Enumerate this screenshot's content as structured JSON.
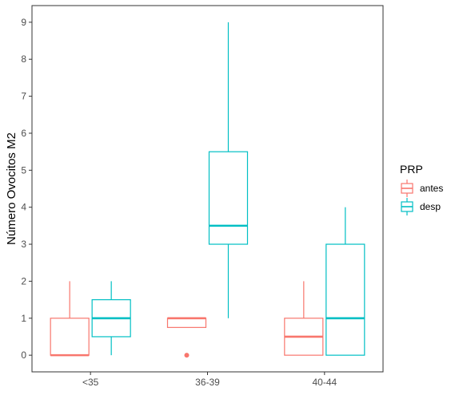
{
  "chart_data": {
    "type": "boxplot",
    "ylabel": "Número Ovocitos M2",
    "xlabel": "",
    "categories": [
      "<35",
      "36-39",
      "40-44"
    ],
    "ylim": [
      -0.45,
      9.45
    ],
    "yticks": [
      0,
      1,
      2,
      3,
      4,
      5,
      6,
      7,
      8,
      9
    ],
    "grid": false,
    "legend": {
      "title": "PRP",
      "placement": "right",
      "entries": [
        "antes",
        "desp"
      ]
    },
    "series": [
      {
        "name": "antes",
        "color": "#F8766D",
        "boxes": [
          {
            "category": "<35",
            "whisker_low": 0,
            "q1": 0,
            "median": 0,
            "q3": 1,
            "whisker_high": 2,
            "outliers": []
          },
          {
            "category": "36-39",
            "whisker_low": 0.75,
            "q1": 0.75,
            "median": 1,
            "q3": 1,
            "whisker_high": 1,
            "outliers": [
              0
            ]
          },
          {
            "category": "40-44",
            "whisker_low": 0,
            "q1": 0,
            "median": 0.5,
            "q3": 1,
            "whisker_high": 2,
            "outliers": []
          }
        ]
      },
      {
        "name": "desp",
        "color": "#00BFC4",
        "boxes": [
          {
            "category": "<35",
            "whisker_low": 0,
            "q1": 0.5,
            "median": 1,
            "q3": 1.5,
            "whisker_high": 2,
            "outliers": []
          },
          {
            "category": "36-39",
            "whisker_low": 1,
            "q1": 3,
            "median": 3.5,
            "q3": 5.5,
            "whisker_high": 9,
            "outliers": []
          },
          {
            "category": "40-44",
            "whisker_low": 0,
            "q1": 0,
            "median": 1,
            "q3": 3,
            "whisker_high": 4,
            "outliers": []
          }
        ]
      }
    ]
  }
}
